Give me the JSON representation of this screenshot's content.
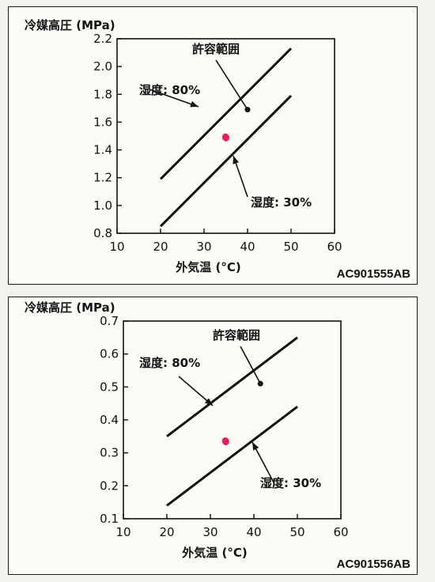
{
  "chart_data": [
    {
      "type": "line",
      "ylabel": "冷媒高圧 (MPa)",
      "xlabel": "外気温 (°C)",
      "xlim": [
        10,
        60
      ],
      "ylim": [
        0.8,
        2.2
      ],
      "xticks": [
        "10",
        "20",
        "30",
        "40",
        "50",
        "60"
      ],
      "yticks": [
        "0.8",
        "1.0",
        "1.2",
        "1.4",
        "1.6",
        "1.8",
        "2.0",
        "2.2"
      ],
      "series": [
        {
          "name": "湿度: 80%",
          "x": [
            20,
            50
          ],
          "y": [
            1.19,
            2.13
          ]
        },
        {
          "name": "湿度: 30%",
          "x": [
            20,
            50
          ],
          "y": [
            0.85,
            1.79
          ]
        }
      ],
      "point": {
        "x": 40,
        "y": 1.69
      },
      "annotation": "許容範囲",
      "marker": {
        "x": 35,
        "y": 1.49,
        "color": "#e8205a"
      },
      "grid": false,
      "figure_code": "AC901555AB"
    },
    {
      "type": "line",
      "ylabel": "冷媒高圧 (MPa)",
      "xlabel": "外気温 (°C)",
      "xlim": [
        10,
        60
      ],
      "ylim": [
        0.1,
        0.7
      ],
      "xticks": [
        "10",
        "20",
        "30",
        "40",
        "50",
        "60"
      ],
      "yticks": [
        "0.1",
        "0.2",
        "0.3",
        "0.4",
        "0.5",
        "0.6",
        "0.7"
      ],
      "series": [
        {
          "name": "湿度: 80%",
          "x": [
            20,
            50
          ],
          "y": [
            0.35,
            0.65
          ]
        },
        {
          "name": "湿度: 30%",
          "x": [
            20,
            50
          ],
          "y": [
            0.14,
            0.44
          ]
        }
      ],
      "point": {
        "x": 41.5,
        "y": 0.51
      },
      "annotation": "許容範囲",
      "marker": {
        "x": 33.5,
        "y": 0.335,
        "color": "#e8205a"
      },
      "grid": false,
      "figure_code": "AC901556AB"
    }
  ]
}
